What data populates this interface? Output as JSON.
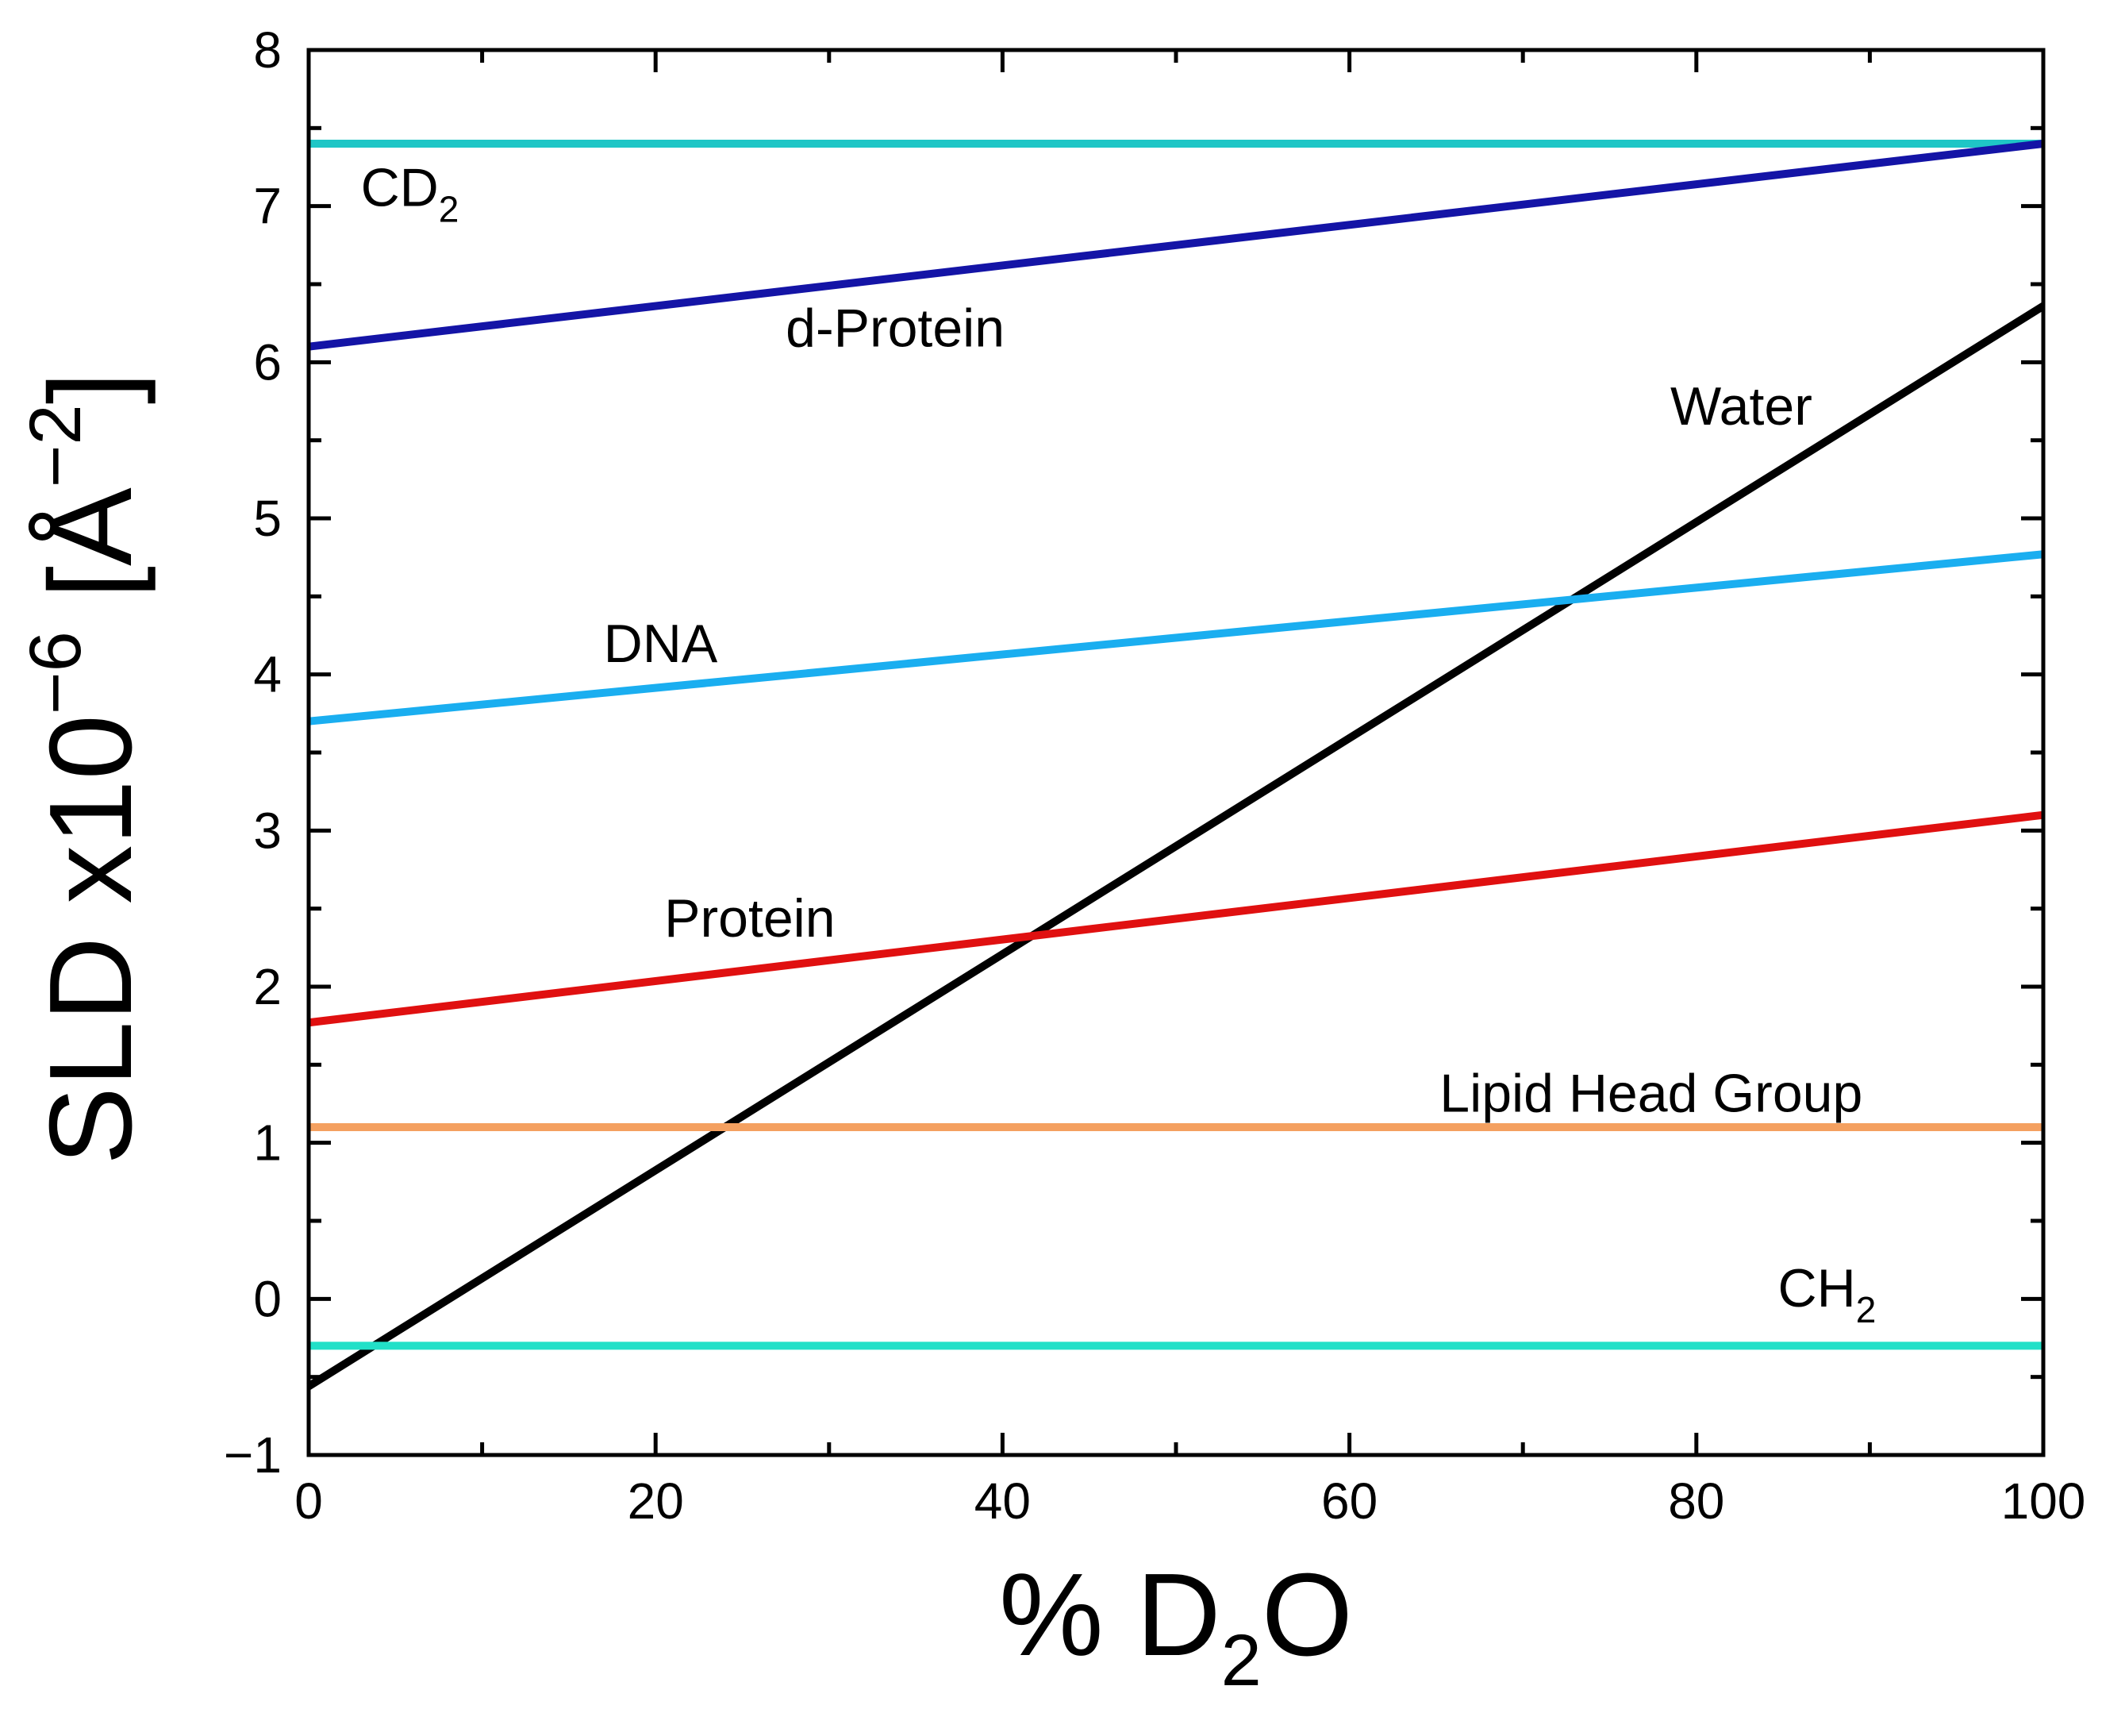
{
  "chart_data": {
    "type": "line",
    "title": "",
    "xlabel": {
      "prefix": "% D",
      "sub": "2",
      "suffix": "O"
    },
    "ylabel": {
      "base": "SLD x10",
      "sup": "−6",
      "unit_open": " [Å",
      "unit_sup": "−2",
      "unit_close": "]"
    },
    "xlim": [
      0,
      100
    ],
    "ylim": [
      -1,
      8
    ],
    "x_major_ticks": [
      0,
      20,
      40,
      60,
      80,
      100
    ],
    "x_tick_labels": [
      "0",
      "20",
      "40",
      "60",
      "80",
      "100"
    ],
    "x_minor_ticks": [
      10,
      30,
      50,
      70,
      90
    ],
    "y_major_ticks": [
      -1,
      0,
      1,
      2,
      3,
      4,
      5,
      6,
      7,
      8
    ],
    "y_tick_labels": [
      "−1",
      "0",
      "1",
      "2",
      "3",
      "4",
      "5",
      "6",
      "7",
      "8"
    ],
    "y_minor_ticks": [
      -0.5,
      0.5,
      1.5,
      2.5,
      3.5,
      4.5,
      5.5,
      6.5,
      7.5
    ],
    "grid": false,
    "series": [
      {
        "name": "CD2",
        "label": "CD",
        "label_sub": "2",
        "color": "#1fc6c6",
        "x": [
          0,
          100
        ],
        "y": [
          7.4,
          7.4
        ],
        "label_at": [
          3,
          7.0
        ]
      },
      {
        "name": "d-Protein",
        "label": "d-Protein",
        "label_sub": "",
        "color": "#1414a6",
        "x": [
          0,
          100
        ],
        "y": [
          6.1,
          7.4
        ],
        "label_at": [
          27.5,
          6.1
        ]
      },
      {
        "name": "Water",
        "label": "Water",
        "label_sub": "",
        "color": "#000000",
        "x": [
          0,
          100
        ],
        "y": [
          -0.56,
          6.36
        ],
        "label_at": [
          78.5,
          5.6
        ]
      },
      {
        "name": "DNA",
        "label": "DNA",
        "label_sub": "",
        "color": "#1aaef0",
        "x": [
          0,
          100
        ],
        "y": [
          3.7,
          4.77
        ],
        "label_at": [
          17,
          4.08
        ]
      },
      {
        "name": "Protein",
        "label": "Protein",
        "label_sub": "",
        "color": "#e01010",
        "x": [
          0,
          100
        ],
        "y": [
          1.77,
          3.1
        ],
        "label_at": [
          20.5,
          2.32
        ]
      },
      {
        "name": "Lipid Head Group",
        "label": "Lipid Head Group",
        "label_sub": "",
        "color": "#f4a060",
        "x": [
          0,
          100
        ],
        "y": [
          1.1,
          1.1
        ],
        "label_at": [
          65.2,
          1.2
        ]
      },
      {
        "name": "CH2",
        "label": "CH",
        "label_sub": "2",
        "color": "#22e0c8",
        "x": [
          0,
          100
        ],
        "y": [
          -0.3,
          -0.3
        ],
        "label_at": [
          84.7,
          -0.05
        ]
      }
    ]
  }
}
